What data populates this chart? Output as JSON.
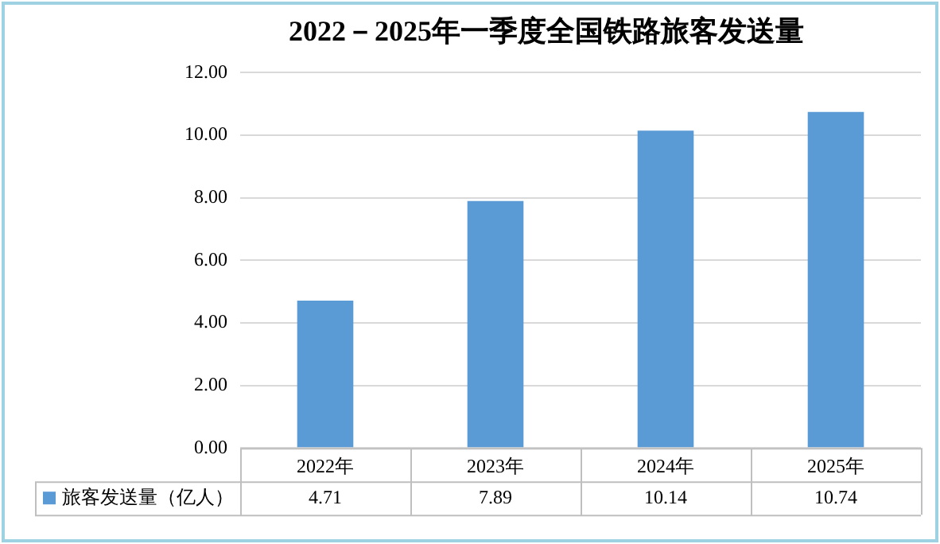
{
  "chart_data": {
    "type": "bar",
    "title": "2022－2025年一季度全国铁路旅客发送量",
    "categories": [
      "2022年",
      "2023年",
      "2024年",
      "2025年"
    ],
    "series": [
      {
        "name": "旅客发送量（亿人）",
        "color": "#5b9bd5",
        "values": [
          4.71,
          7.89,
          10.14,
          10.74
        ]
      }
    ],
    "ylim": [
      0,
      12
    ],
    "yticks": [
      {
        "value": 0,
        "label": "0.00"
      },
      {
        "value": 2,
        "label": "2.00"
      },
      {
        "value": 4,
        "label": "4.00"
      },
      {
        "value": 6,
        "label": "6.00"
      },
      {
        "value": 8,
        "label": "8.00"
      },
      {
        "value": 10,
        "label": "10.00"
      },
      {
        "value": 12,
        "label": "12.00"
      }
    ],
    "grid": "y",
    "legend": "bottom",
    "data_labels": true
  }
}
